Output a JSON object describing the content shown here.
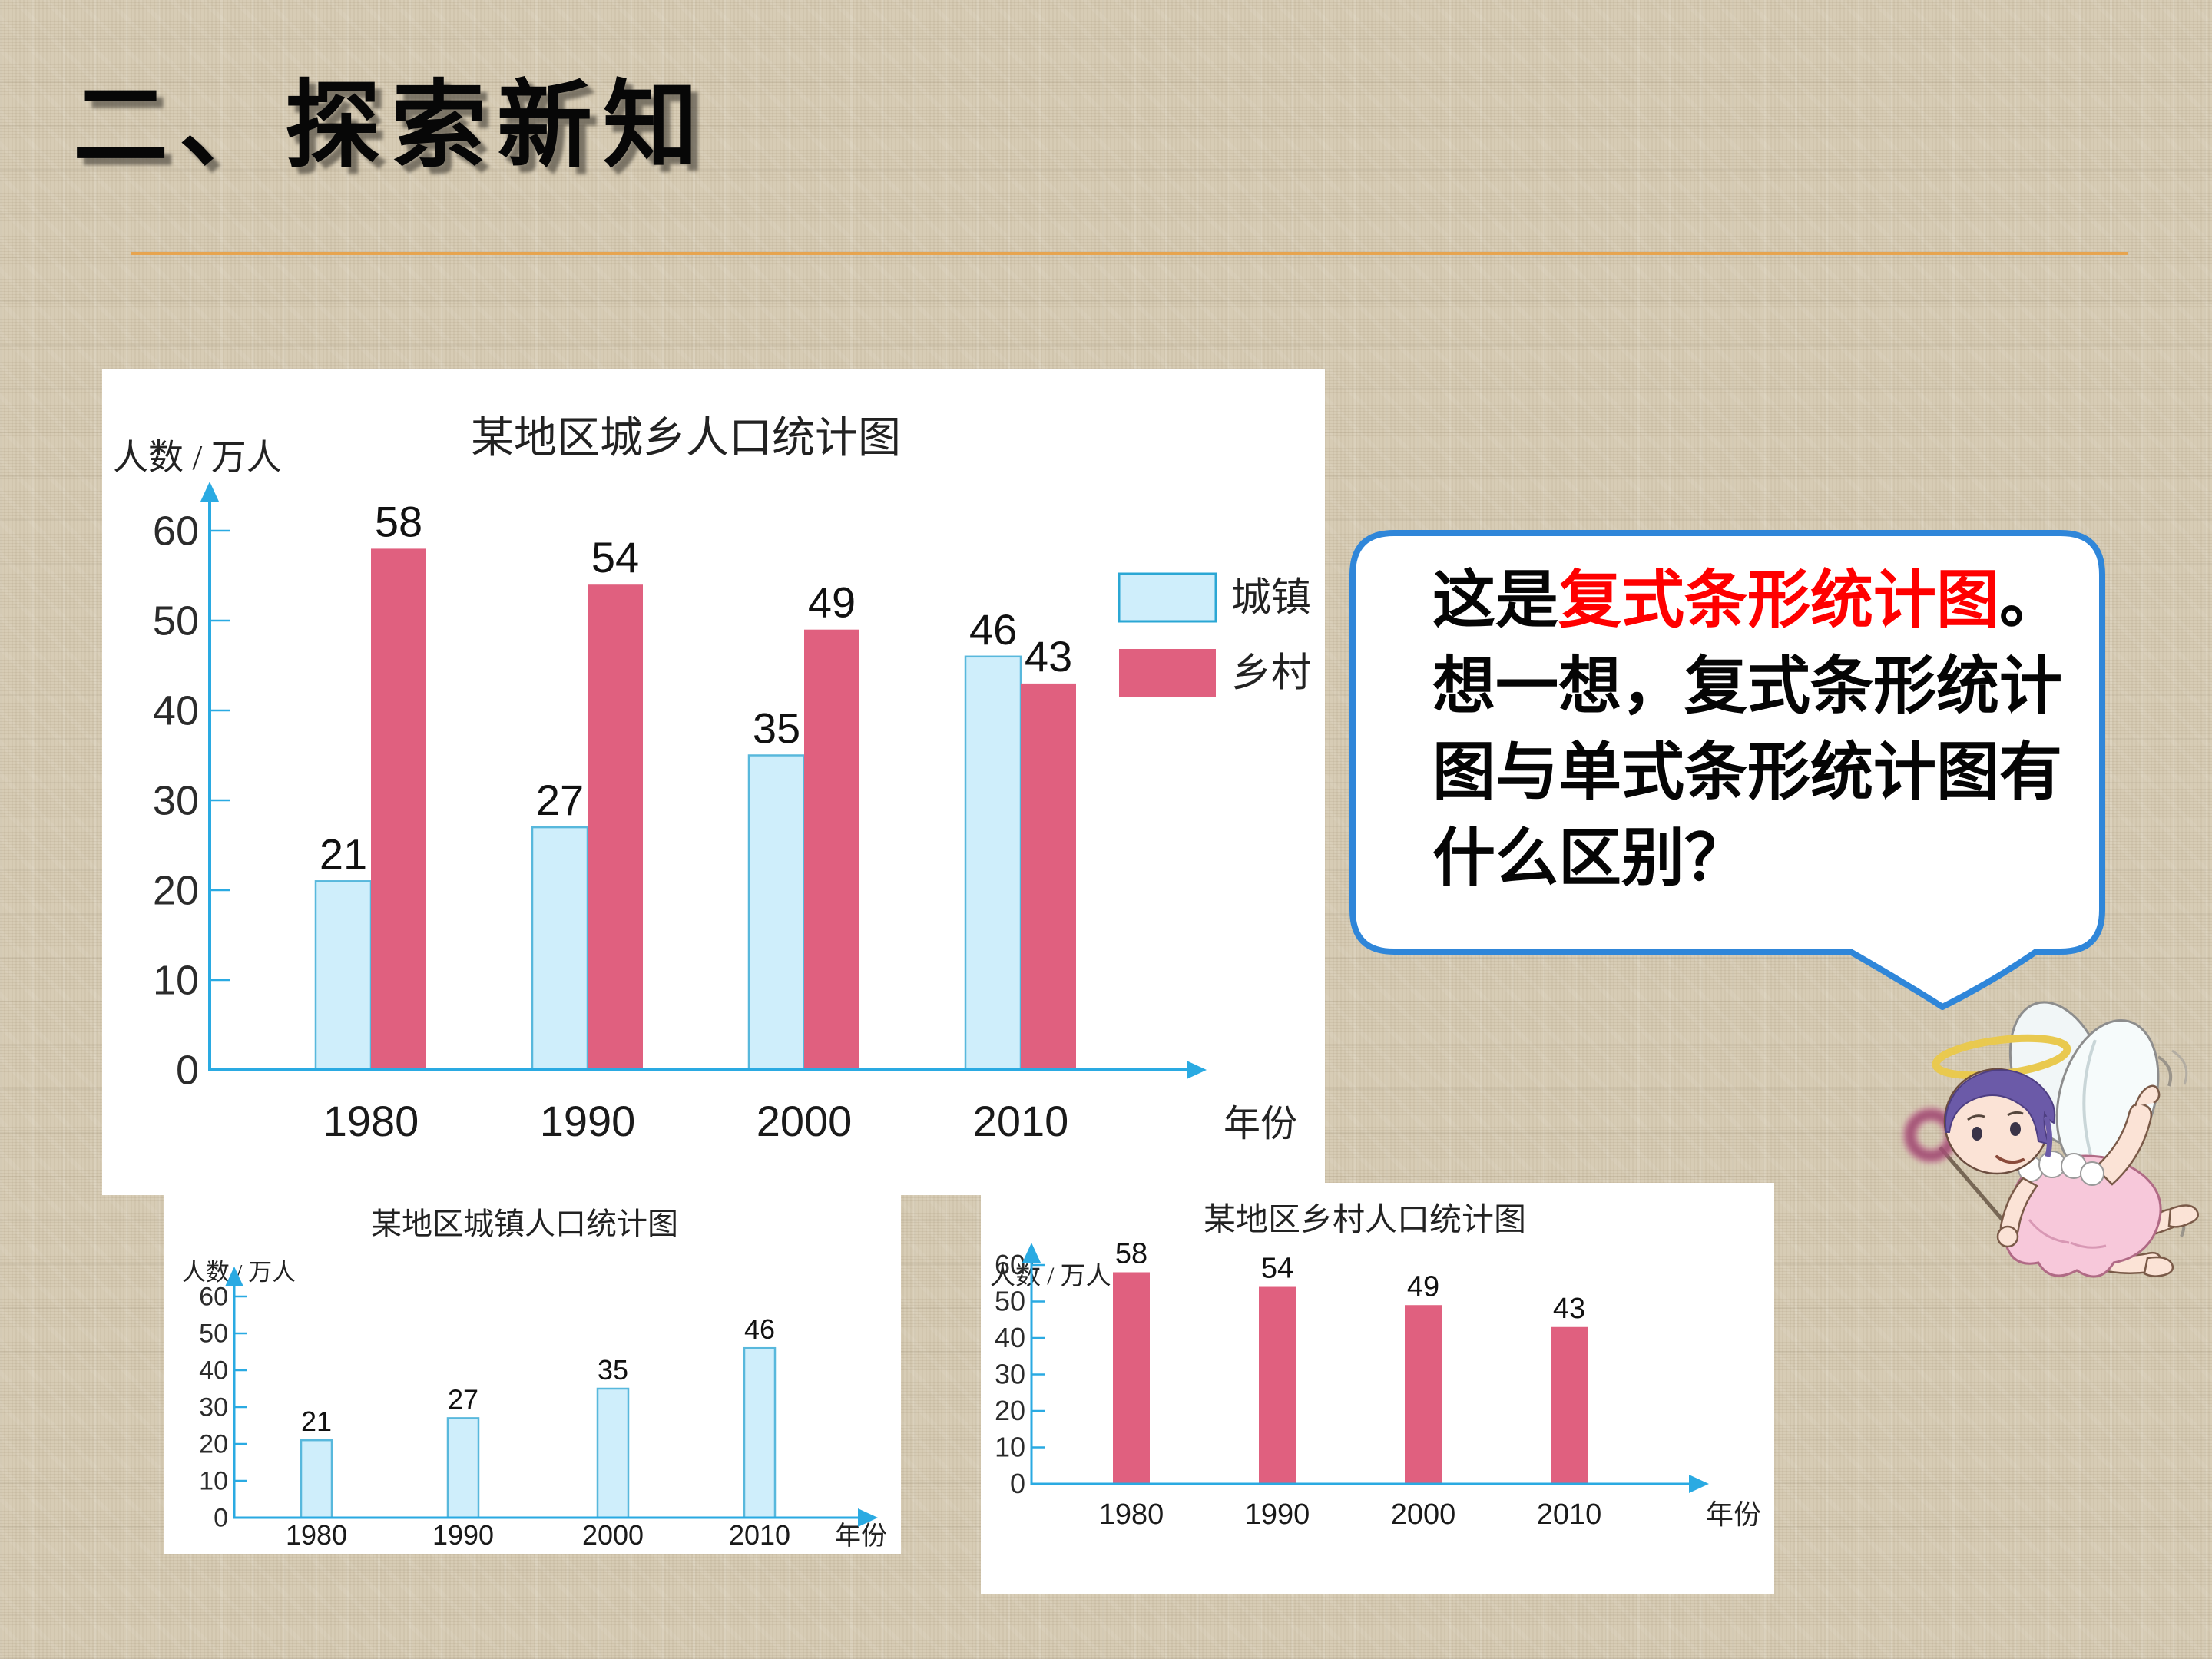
{
  "slide": {
    "section_title": "二、探索新知",
    "accent_line_color": "#e7a44f",
    "icons": {
      "mascot": "fairy-angel",
      "bubble": "speech-bubble"
    },
    "bubble": {
      "border_color": "#2f86d9",
      "intro": "这是",
      "highlight": "复式条形统计图",
      "highlight_color": "#ff0000",
      "after_highlight": "。",
      "line2": "想一想，复式条形统计",
      "line3": "图与单式条形统计图有",
      "line4": "什么区别？"
    }
  },
  "chart_data": [
    {
      "id": "combined",
      "type": "bar",
      "title": "某地区城乡人口统计图",
      "ylabel": "人数 / 万人",
      "xlabel": "年份",
      "categories": [
        "1980",
        "1990",
        "2000",
        "2010"
      ],
      "series": [
        {
          "name": "城镇",
          "fill": "#cfeefb",
          "stroke": "#58b8dc",
          "values": [
            21,
            27,
            35,
            46
          ]
        },
        {
          "name": "乡村",
          "fill": "#e0607f",
          "stroke": "#e0607f",
          "values": [
            58,
            54,
            49,
            43
          ]
        }
      ],
      "ylim": [
        0,
        60
      ],
      "ytick_step": 10,
      "yticks": [
        0,
        10,
        20,
        30,
        40,
        50,
        60
      ],
      "axis_color": "#2aaae2",
      "legend_position": "right",
      "grid": false
    },
    {
      "id": "urban",
      "type": "bar",
      "title": "某地区城镇人口统计图",
      "ylabel": "人数 / 万人",
      "xlabel": "年份",
      "categories": [
        "1980",
        "1990",
        "2000",
        "2010"
      ],
      "series": [
        {
          "name": "城镇",
          "fill": "#cfeefb",
          "stroke": "#58b8dc",
          "values": [
            21,
            27,
            35,
            46
          ]
        }
      ],
      "ylim": [
        0,
        60
      ],
      "ytick_step": 10,
      "yticks": [
        0,
        10,
        20,
        30,
        40,
        50,
        60
      ],
      "axis_color": "#2aaae2",
      "legend_position": "none",
      "grid": false
    },
    {
      "id": "rural",
      "type": "bar",
      "title": "某地区乡村人口统计图",
      "ylabel": "人数 / 万人",
      "xlabel": "年份",
      "categories": [
        "1980",
        "1990",
        "2000",
        "2010"
      ],
      "series": [
        {
          "name": "乡村",
          "fill": "#e0607f",
          "stroke": "#e0607f",
          "values": [
            58,
            54,
            49,
            43
          ]
        }
      ],
      "ylim": [
        0,
        60
      ],
      "ytick_step": 10,
      "yticks": [
        0,
        10,
        20,
        30,
        40,
        50,
        60
      ],
      "axis_color": "#2aaae2",
      "legend_position": "none",
      "grid": false
    }
  ]
}
